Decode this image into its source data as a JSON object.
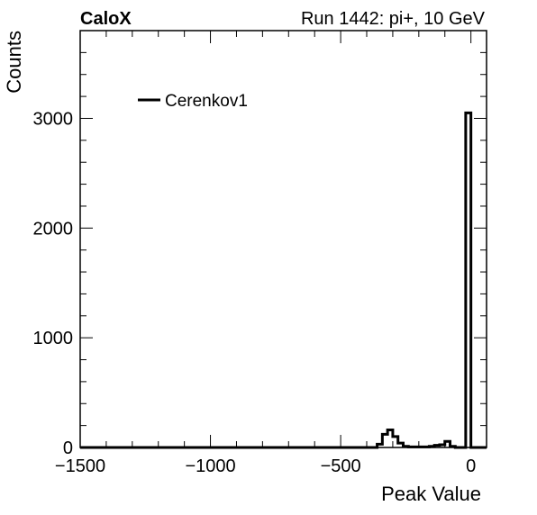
{
  "header": {
    "experiment": "CaloX",
    "run_info": "Run 1442: pi+, 10 GeV"
  },
  "chart_data": {
    "type": "histogram",
    "xlabel": "Peak Value",
    "ylabel": "Counts",
    "xlim": [
      -1500,
      60
    ],
    "ylim": [
      0,
      3800
    ],
    "xticks": [
      -1500,
      -1000,
      -500,
      0
    ],
    "xtick_labels": [
      "−1500",
      "−1000",
      "−500",
      "0"
    ],
    "yticks": [
      0,
      1000,
      2000,
      3000
    ],
    "ytick_labels": [
      "0",
      "1000",
      "2000",
      "3000"
    ],
    "legend": {
      "position": "top-left",
      "entries": [
        "Cerenkov1"
      ]
    },
    "grid": false,
    "series": [
      {
        "name": "Cerenkov1",
        "color": "#000000",
        "bin_edges": [
          -1500,
          -380,
          -360,
          -340,
          -320,
          -300,
          -280,
          -260,
          -240,
          -220,
          -200,
          -180,
          -160,
          -140,
          -120,
          -100,
          -80,
          -60,
          -40,
          -20,
          0,
          20,
          40,
          60
        ],
        "counts": [
          0,
          0,
          30,
          120,
          160,
          100,
          40,
          10,
          5,
          5,
          5,
          5,
          10,
          20,
          25,
          55,
          10,
          0,
          0,
          3050,
          0,
          0,
          0
        ]
      }
    ]
  }
}
